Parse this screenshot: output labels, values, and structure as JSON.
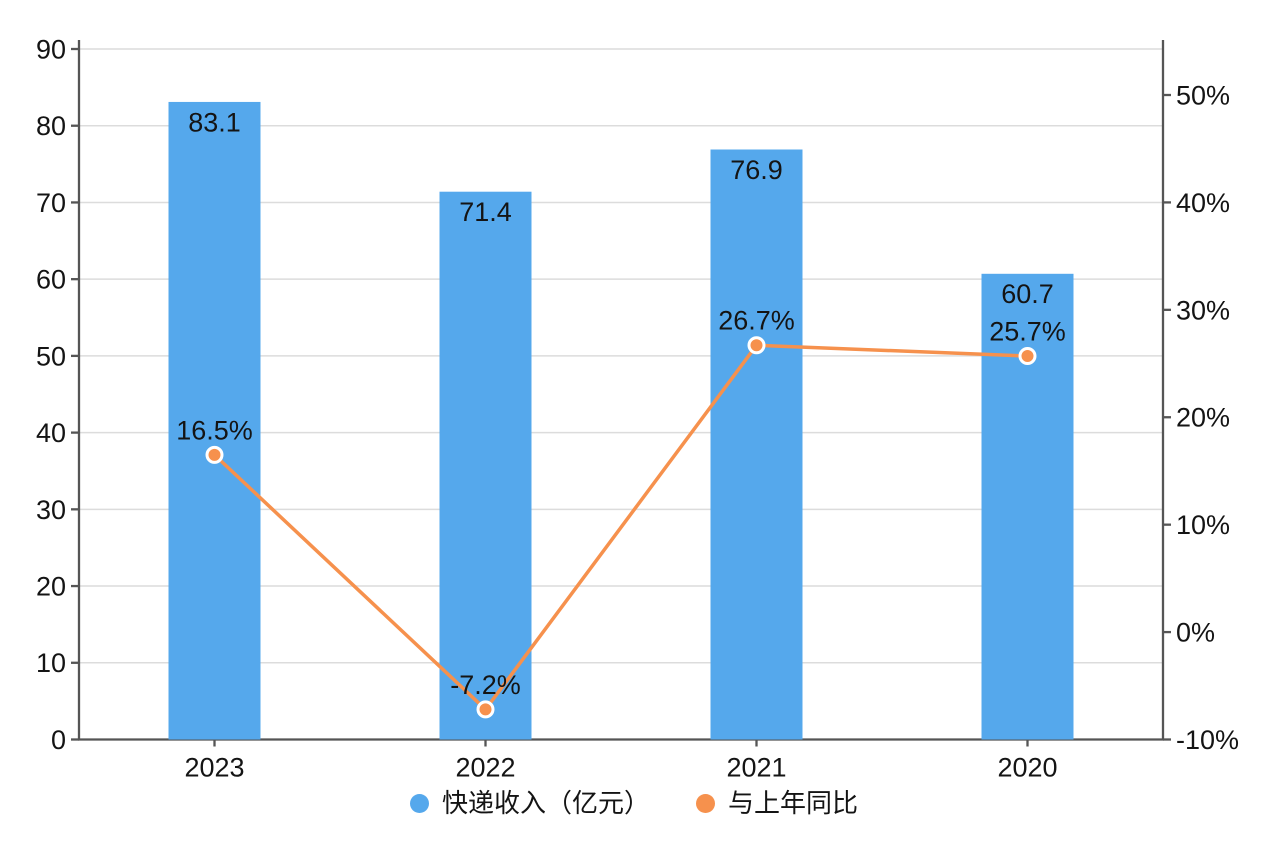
{
  "chart_data": {
    "type": "bar",
    "categories": [
      "2023",
      "2022",
      "2021",
      "2020"
    ],
    "series": [
      {
        "name": "快递收入（亿元）",
        "type": "bar",
        "axis": "left",
        "values": [
          83.1,
          71.4,
          76.9,
          60.7
        ],
        "labels": [
          "83.1",
          "71.4",
          "76.9",
          "60.7"
        ],
        "color": "#55a8ec"
      },
      {
        "name": "与上年同比",
        "type": "line",
        "axis": "right",
        "values": [
          16.5,
          -7.2,
          26.7,
          25.7
        ],
        "labels": [
          "16.5%",
          "-7.2%",
          "26.7%",
          "25.7%"
        ],
        "color": "#f6914d"
      }
    ],
    "title": "",
    "xlabel": "",
    "ylabel": "",
    "left_axis": {
      "min": 0,
      "max": 90,
      "step": 10,
      "tick_labels": [
        "0",
        "10",
        "20",
        "30",
        "40",
        "50",
        "60",
        "70",
        "80",
        "90"
      ]
    },
    "right_axis": {
      "min": -10,
      "max": 50,
      "step": 10,
      "tick_labels": [
        "-10%",
        "0%",
        "10%",
        "20%",
        "30%",
        "40%",
        "50%"
      ]
    },
    "grid": true,
    "legend_position": "bottom-center"
  },
  "legend": {
    "items": [
      {
        "label": "快递收入（亿元）",
        "color": "#55a8ec"
      },
      {
        "label": "与上年同比",
        "color": "#f6914d"
      }
    ]
  },
  "colors": {
    "bar_blue": "#55a8ec",
    "line_orange": "#f6914d",
    "axis": "#555555",
    "gridline": "#dcdcdc",
    "text": "#141414",
    "marker_ring": "#ffffff",
    "background": "#ffffff"
  }
}
